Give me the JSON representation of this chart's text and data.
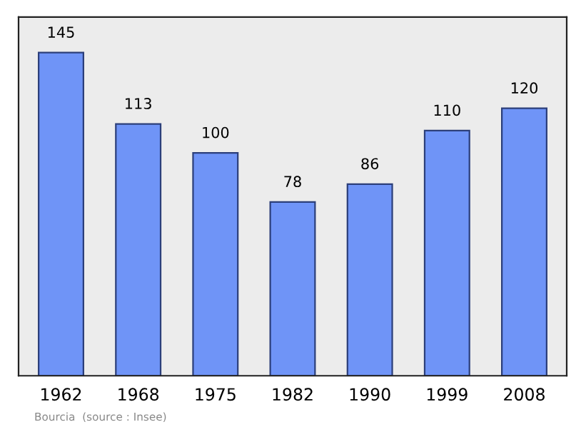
{
  "chart_data": {
    "type": "bar",
    "categories": [
      "1962",
      "1968",
      "1975",
      "1982",
      "1990",
      "1999",
      "2008"
    ],
    "values": [
      145,
      113,
      100,
      78,
      86,
      110,
      120
    ],
    "color": "#6f94f7",
    "data_labels": true,
    "annotations": [
      "Bourcia  (source : Insee)"
    ]
  }
}
